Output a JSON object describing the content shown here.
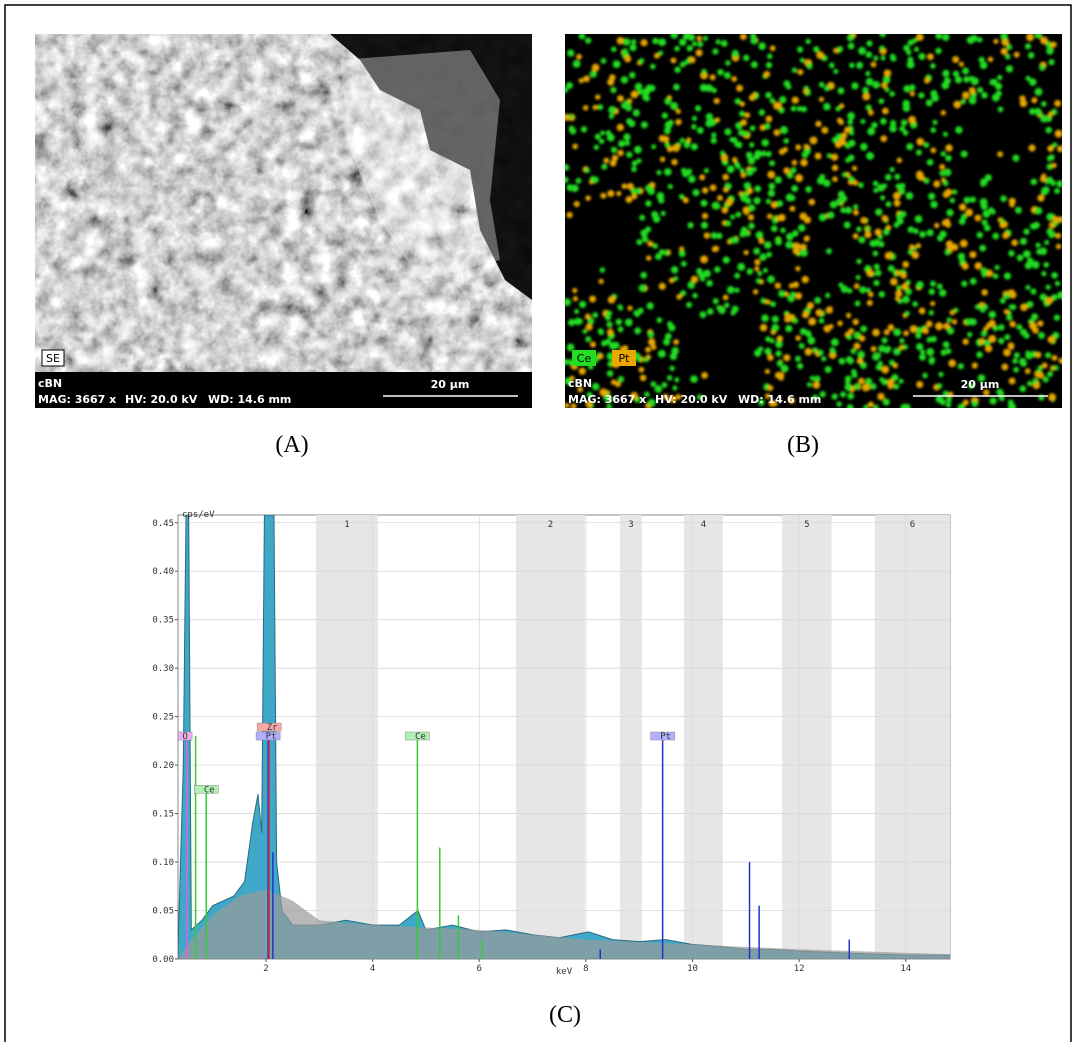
{
  "panels": [
    {
      "label": "(A)",
      "tag": "SE",
      "sample": "cBN",
      "mag": "MAG: 3667 x",
      "hv": "HV: 20.0 kV",
      "wd": "WD: 14.6 mm",
      "scale": "20 µm"
    },
    {
      "label": "(B)",
      "legend": [
        {
          "name": "Ce",
          "color": "#22dd22"
        },
        {
          "name": "Pt",
          "color": "#e8a800"
        }
      ],
      "sample": "cBN",
      "mag": "MAG: 3667 x",
      "hv": "HV: 20.0 kV",
      "wd": "WD: 14.6 mm",
      "scale": "20 µm"
    },
    {
      "label": "(C)"
    }
  ],
  "chart_data": {
    "type": "spectrum",
    "ylabel": "cps/eV",
    "xlabel": "keV",
    "xlim": [
      0.35,
      14.83
    ],
    "ylim": [
      0,
      0.458
    ],
    "xticks": [
      2,
      4,
      6,
      8,
      10,
      12,
      14
    ],
    "yticks": [
      {
        "value": 0,
        "label": "0.00"
      },
      {
        "value": 0.05,
        "label": "0.05"
      },
      {
        "value": 0.1,
        "label": "0.10"
      },
      {
        "value": 0.15,
        "label": "0.15"
      },
      {
        "value": 0.2,
        "label": "0.20"
      },
      {
        "value": 0.25,
        "label": "0.25"
      },
      {
        "value": 0.3,
        "label": "0.30"
      },
      {
        "value": 0.35,
        "label": "0.35"
      },
      {
        "value": 0.4,
        "label": "0.40"
      },
      {
        "value": 0.45,
        "label": "0.45"
      }
    ],
    "grid": true,
    "regions": [
      {
        "label": "1",
        "range": [
          2.94,
          4.1
        ]
      },
      {
        "label": "2",
        "range": [
          6.69,
          7.98
        ]
      },
      {
        "label": "3",
        "range": [
          8.64,
          9.05
        ]
      },
      {
        "label": "4",
        "range": [
          9.84,
          10.57
        ]
      },
      {
        "label": "5",
        "range": [
          11.68,
          12.61
        ]
      },
      {
        "label": "6",
        "range": [
          13.42,
          14.83
        ]
      }
    ],
    "series": [
      {
        "color": "#3fa7c8",
        "x": [
          0.35,
          0.45,
          0.5,
          0.55,
          0.6,
          0.8,
          1.0,
          1.2,
          1.4,
          1.6,
          1.75,
          1.85,
          1.92,
          1.97,
          2.15,
          2.2,
          2.3,
          2.5,
          3.0,
          3.5,
          4.0,
          4.5,
          4.85,
          5.0,
          5.5,
          6.0,
          6.5,
          7.0,
          7.5,
          8.05,
          8.5,
          9.0,
          9.5,
          10.0,
          10.5,
          11.0,
          11.5,
          12.0,
          12.5,
          13.0,
          13.5,
          14.0,
          14.83
        ],
        "values": [
          0.01,
          0.2,
          0.458,
          0.458,
          0.03,
          0.04,
          0.055,
          0.06,
          0.065,
          0.08,
          0.14,
          0.17,
          0.13,
          0.458,
          0.458,
          0.1,
          0.05,
          0.035,
          0.035,
          0.04,
          0.035,
          0.035,
          0.05,
          0.03,
          0.035,
          0.028,
          0.03,
          0.025,
          0.022,
          0.028,
          0.02,
          0.018,
          0.02,
          0.015,
          0.013,
          0.01,
          0.01,
          0.008,
          0.007,
          0.006,
          0.005,
          0.004,
          0.004
        ]
      },
      {
        "color": "#9a9a9a",
        "x": [
          0.35,
          0.6,
          1.0,
          1.5,
          2.0,
          2.5,
          3.0,
          4.0,
          6.0,
          8.0,
          10.0,
          12.0,
          14.83
        ],
        "values": [
          0,
          0.02,
          0.045,
          0.065,
          0.072,
          0.06,
          0.04,
          0.035,
          0.03,
          0.02,
          0.015,
          0.01,
          0.005
        ]
      }
    ],
    "lines": [
      {
        "energy": 0.52,
        "height": 0.23,
        "color": "#e060e0",
        "label": "O"
      },
      {
        "energy": 0.68,
        "height": 0.23,
        "color": "#33cc33"
      },
      {
        "energy": 0.88,
        "height": 0.175,
        "color": "#33cc33",
        "label": "Ce"
      },
      {
        "energy": 2.04,
        "height": 0.23,
        "color": "#2233cc",
        "label": "Pt"
      },
      {
        "energy": 2.06,
        "height": 0.23,
        "color": "#dd3333",
        "label": "Zr"
      },
      {
        "energy": 2.13,
        "height": 0.11,
        "color": "#2233cc"
      },
      {
        "energy": 4.84,
        "height": 0.23,
        "color": "#33cc33",
        "label": "Ce"
      },
      {
        "energy": 5.26,
        "height": 0.115,
        "color": "#33cc33"
      },
      {
        "energy": 5.61,
        "height": 0.045,
        "color": "#33cc33"
      },
      {
        "energy": 6.05,
        "height": 0.02,
        "color": "#33cc33"
      },
      {
        "energy": 8.27,
        "height": 0.01,
        "color": "#2233cc"
      },
      {
        "energy": 9.44,
        "height": 0.23,
        "color": "#2233cc",
        "label": "Pt"
      },
      {
        "energy": 11.07,
        "height": 0.1,
        "color": "#2233cc"
      },
      {
        "energy": 11.25,
        "height": 0.055,
        "color": "#2233cc"
      },
      {
        "energy": 12.94,
        "height": 0.02,
        "color": "#2233cc"
      }
    ]
  }
}
